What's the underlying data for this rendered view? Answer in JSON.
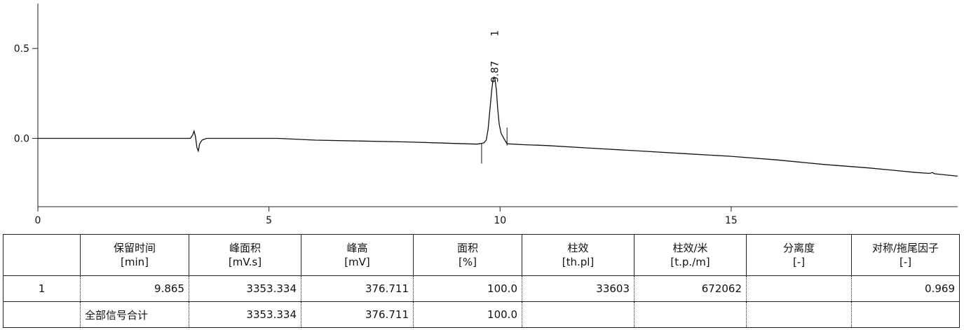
{
  "chart_data": {
    "type": "line",
    "xlim": [
      0,
      19.9
    ],
    "ylim": [
      -0.38,
      0.75
    ],
    "x_ticks": [
      {
        "value": 0,
        "label": "0"
      },
      {
        "value": 5,
        "label": "5"
      },
      {
        "value": 10,
        "label": "10"
      },
      {
        "value": 15,
        "label": "15"
      }
    ],
    "y_ticks": [
      {
        "value": 0.5,
        "label": "0.5"
      },
      {
        "value": 0.0,
        "label": "0.0"
      }
    ],
    "series": [
      {
        "points": [
          [
            0,
            0.0
          ],
          [
            3.0,
            0.0
          ],
          [
            3.3,
            0.0
          ],
          [
            3.35,
            0.02
          ],
          [
            3.38,
            0.04
          ],
          [
            3.41,
            0.01
          ],
          [
            3.44,
            -0.05
          ],
          [
            3.47,
            -0.07
          ],
          [
            3.5,
            -0.03
          ],
          [
            3.55,
            -0.01
          ],
          [
            3.65,
            0.0
          ],
          [
            4.0,
            0.0
          ],
          [
            5.2,
            0.0
          ],
          [
            6.0,
            -0.01
          ],
          [
            7.0,
            -0.015
          ],
          [
            8.0,
            -0.02
          ],
          [
            9.0,
            -0.028
          ],
          [
            9.5,
            -0.032
          ],
          [
            9.6,
            -0.028
          ],
          [
            9.65,
            -0.025
          ],
          [
            9.7,
            -0.01
          ],
          [
            9.74,
            0.05
          ],
          [
            9.78,
            0.16
          ],
          [
            9.82,
            0.27
          ],
          [
            9.85,
            0.33
          ],
          [
            9.87,
            0.34
          ],
          [
            9.89,
            0.33
          ],
          [
            9.92,
            0.27
          ],
          [
            9.95,
            0.16
          ],
          [
            9.98,
            0.08
          ],
          [
            10.02,
            0.03
          ],
          [
            10.08,
            0.0
          ],
          [
            10.15,
            -0.03
          ],
          [
            10.5,
            -0.035
          ],
          [
            11.0,
            -0.04
          ],
          [
            12.0,
            -0.055
          ],
          [
            13.0,
            -0.07
          ],
          [
            14.0,
            -0.085
          ],
          [
            15.0,
            -0.1
          ],
          [
            16.0,
            -0.12
          ],
          [
            17.0,
            -0.145
          ],
          [
            18.0,
            -0.165
          ],
          [
            19.0,
            -0.19
          ],
          [
            19.3,
            -0.195
          ],
          [
            19.35,
            -0.19
          ],
          [
            19.4,
            -0.197
          ],
          [
            19.9,
            -0.21
          ]
        ]
      }
    ],
    "annotations": [
      {
        "x": 9.87,
        "label": "9.87",
        "peak": "1"
      }
    ],
    "integration_markers": [
      {
        "x": 9.6,
        "top": -0.03,
        "bottom": -0.14
      },
      {
        "x": 10.15,
        "top": 0.06,
        "bottom": -0.04
      }
    ]
  },
  "table": {
    "headers": [
      {
        "name": "",
        "unit": ""
      },
      {
        "name": "保留时间",
        "unit": "[min]"
      },
      {
        "name": "峰面积",
        "unit": "[mV.s]"
      },
      {
        "name": "峰高",
        "unit": "[mV]"
      },
      {
        "name": "面积",
        "unit": "[%]"
      },
      {
        "name": "柱效",
        "unit": "[th.pl]"
      },
      {
        "name": "柱效/米",
        "unit": "[t.p./m]"
      },
      {
        "name": "分离度",
        "unit": "[-]"
      },
      {
        "name": "对称/拖尾因子",
        "unit": "[-]"
      }
    ],
    "rows": [
      [
        "1",
        "9.865",
        "3353.334",
        "376.711",
        "100.0",
        "33603",
        "672062",
        "",
        "0.969"
      ],
      [
        "",
        "全部信号合计",
        "3353.334",
        "376.711",
        "100.0",
        "",
        "",
        "",
        ""
      ]
    ]
  }
}
